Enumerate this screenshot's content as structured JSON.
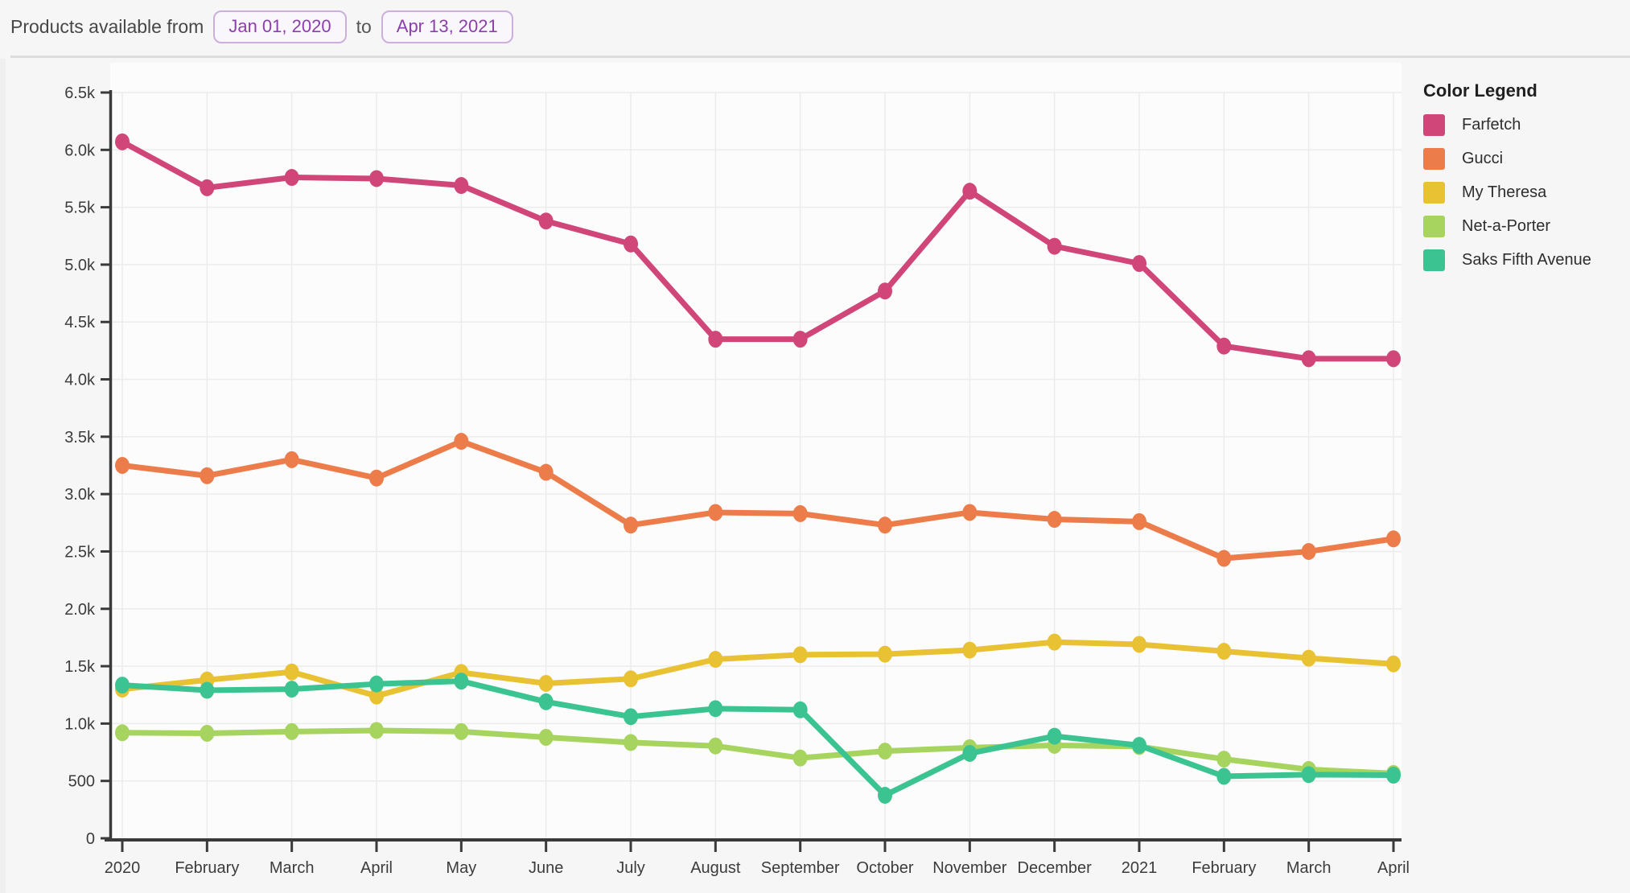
{
  "header": {
    "title_prefix": "Products available from",
    "start_date": "Jan 01, 2020",
    "separator": "to",
    "end_date": "Apr 13, 2021"
  },
  "legend": {
    "title": "Color Legend"
  },
  "colors": {
    "page_bg": "#f7f6f6",
    "plot_bg": "#fcfcfc",
    "gridline": "#ececec",
    "axis": "#3a3a3a",
    "tick_label": "#3c3c3c",
    "divider": "#dcdcdc",
    "chip_text": "#8b3fa8",
    "chip_border": "#ccafdb"
  },
  "chart_data": {
    "type": "line",
    "title": "",
    "xlabel": "",
    "ylabel": "",
    "ylim": [
      0,
      6500
    ],
    "ytick_step": 500,
    "ytick_labels": [
      "0",
      "500",
      "1.0k",
      "1.5k",
      "2.0k",
      "2.5k",
      "3.0k",
      "3.5k",
      "4.0k",
      "4.5k",
      "5.0k",
      "5.5k",
      "6.0k",
      "6.5k"
    ],
    "grid": true,
    "legend_position": "right",
    "categories": [
      "2020",
      "February",
      "March",
      "April",
      "May",
      "June",
      "July",
      "August",
      "September",
      "October",
      "November",
      "December",
      "2021",
      "February",
      "March",
      "April"
    ],
    "series": [
      {
        "name": "Farfetch",
        "color": "#d14679",
        "values": [
          6070,
          5670,
          5760,
          5750,
          5690,
          5380,
          5180,
          4350,
          4350,
          4770,
          5640,
          5160,
          5010,
          4290,
          4180,
          4180
        ]
      },
      {
        "name": "Gucci",
        "color": "#ec7c4a",
        "values": [
          3250,
          3160,
          3300,
          3140,
          3460,
          3190,
          2730,
          2840,
          2830,
          2730,
          2840,
          2780,
          2760,
          2440,
          2500,
          2610
        ]
      },
      {
        "name": "My Theresa",
        "color": "#e9c233",
        "values": [
          1300,
          1380,
          1450,
          1240,
          1445,
          1350,
          1390,
          1560,
          1600,
          1605,
          1640,
          1710,
          1690,
          1630,
          1570,
          1520
        ]
      },
      {
        "name": "Net-a-Porter",
        "color": "#a6d45f",
        "values": [
          920,
          915,
          930,
          940,
          930,
          880,
          835,
          805,
          700,
          760,
          790,
          810,
          800,
          690,
          600,
          565
        ]
      },
      {
        "name": "Saks Fifth Avenue",
        "color": "#3bc492",
        "values": [
          1335,
          1290,
          1300,
          1345,
          1370,
          1190,
          1060,
          1130,
          1120,
          375,
          740,
          890,
          810,
          540,
          555,
          550
        ]
      }
    ]
  }
}
